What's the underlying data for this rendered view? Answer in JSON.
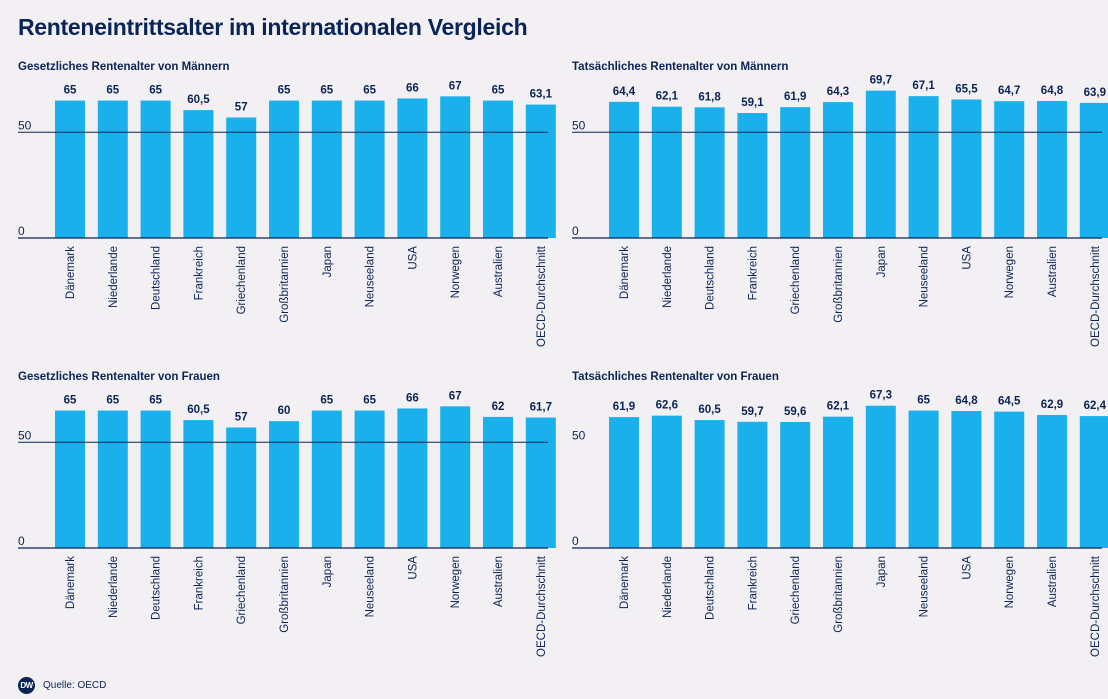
{
  "header": {
    "title": "Renteneintrittsalter im internationalen Vergleich"
  },
  "footer": {
    "logo": "DW",
    "source": "Quelle: OECD"
  },
  "colors": {
    "bar": "#1ab0ec",
    "text": "#0a2456",
    "background": "#f2f0f3"
  },
  "chart_data": [
    {
      "type": "bar",
      "title": "Gesetzliches Rentenalter von Männern",
      "categories": [
        "Dänemark",
        "Niederlande",
        "Deutschland",
        "Frankreich",
        "Griechenland",
        "Großbritannien",
        "Japan",
        "Neuseeland",
        "USA",
        "Norwegen",
        "Australien",
        "OECD-Durchschnitt"
      ],
      "values": [
        65,
        65,
        65,
        60.5,
        57,
        65,
        65,
        65,
        66,
        67,
        65,
        63.1
      ],
      "value_labels": [
        "65",
        "65",
        "65",
        "60,5",
        "57",
        "65",
        "65",
        "65",
        "66",
        "67",
        "65",
        "63,1"
      ],
      "yticks": [
        0,
        50
      ],
      "ylim": [
        0,
        70
      ],
      "xlabel": "",
      "ylabel": "",
      "grid": true
    },
    {
      "type": "bar",
      "title": "Tatsächliches Rentenalter von Männern",
      "categories": [
        "Dänemark",
        "Niederlande",
        "Deutschland",
        "Frankreich",
        "Griechenland",
        "Großbritannien",
        "Japan",
        "Neuseeland",
        "USA",
        "Norwegen",
        "Australien",
        "OECD-Durchschnitt"
      ],
      "values": [
        64.4,
        62.1,
        61.8,
        59.1,
        61.9,
        64.3,
        69.7,
        67.1,
        65.5,
        64.7,
        64.8,
        63.9
      ],
      "value_labels": [
        "64,4",
        "62,1",
        "61,8",
        "59,1",
        "61,9",
        "64,3",
        "69,7",
        "67,1",
        "65,5",
        "64,7",
        "64,8",
        "63,9"
      ],
      "yticks": [
        0,
        50
      ],
      "ylim": [
        0,
        70
      ],
      "xlabel": "",
      "ylabel": "",
      "grid": true
    },
    {
      "type": "bar",
      "title": "Gesetzliches Rentenalter von Frauen",
      "categories": [
        "Dänemark",
        "Niederlande",
        "Deutschland",
        "Frankreich",
        "Griechenland",
        "Großbritannien",
        "Japan",
        "Neuseeland",
        "USA",
        "Norwegen",
        "Australien",
        "OECD-Durchschnitt"
      ],
      "values": [
        65,
        65,
        65,
        60.5,
        57,
        60,
        65,
        65,
        66,
        67,
        62,
        61.7
      ],
      "value_labels": [
        "65",
        "65",
        "65",
        "60,5",
        "57",
        "60",
        "65",
        "65",
        "66",
        "67",
        "62",
        "61,7"
      ],
      "yticks": [
        0,
        50
      ],
      "ylim": [
        0,
        70
      ],
      "xlabel": "",
      "ylabel": "",
      "grid": true
    },
    {
      "type": "bar",
      "title": "Tatsächliches Rentenalter von Frauen",
      "categories": [
        "Dänemark",
        "Niederlande",
        "Deutschland",
        "Frankreich",
        "Griechenland",
        "Großbritannien",
        "Japan",
        "Neuseeland",
        "USA",
        "Norwegen",
        "Australien",
        "OECD-Durchschnitt"
      ],
      "values": [
        61.9,
        62.6,
        60.5,
        59.7,
        59.6,
        62.1,
        67.3,
        65,
        64.8,
        64.5,
        62.9,
        62.4
      ],
      "value_labels": [
        "61,9",
        "62,6",
        "60,5",
        "59,7",
        "59,6",
        "62,1",
        "67,3",
        "65",
        "64,8",
        "64,5",
        "62,9",
        "62,4"
      ],
      "yticks": [
        0,
        50
      ],
      "ylim": [
        0,
        70
      ],
      "xlabel": "",
      "ylabel": "",
      "grid": false
    }
  ]
}
